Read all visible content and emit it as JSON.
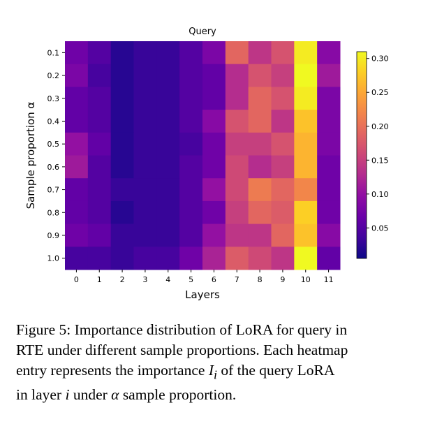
{
  "chart_data": {
    "type": "heatmap",
    "title": "Query",
    "xlabel": "Layers",
    "ylabel": "Sample proportion α",
    "x_ticks": [
      "0",
      "1",
      "2",
      "3",
      "4",
      "5",
      "6",
      "7",
      "8",
      "9",
      "10",
      "11"
    ],
    "y_ticks": [
      "0.1",
      "0.2",
      "0.3",
      "0.4",
      "0.5",
      "0.6",
      "0.7",
      "0.8",
      "0.9",
      "1.0"
    ],
    "colormap": "plasma",
    "value_range": [
      0.005,
      0.31
    ],
    "colorbar_ticks": [
      "0.05",
      "0.10",
      "0.15",
      "0.20",
      "0.25",
      "0.30"
    ],
    "colorbar_tick_values": [
      0.05,
      0.1,
      0.15,
      0.2,
      0.25,
      0.3
    ],
    "values": [
      [
        0.07,
        0.05,
        0.02,
        0.03,
        0.03,
        0.05,
        0.08,
        0.19,
        0.14,
        0.17,
        0.3,
        0.09
      ],
      [
        0.08,
        0.04,
        0.02,
        0.03,
        0.03,
        0.05,
        0.06,
        0.13,
        0.17,
        0.15,
        0.31,
        0.11
      ],
      [
        0.06,
        0.05,
        0.02,
        0.03,
        0.03,
        0.05,
        0.06,
        0.13,
        0.19,
        0.17,
        0.3,
        0.08
      ],
      [
        0.06,
        0.05,
        0.02,
        0.03,
        0.03,
        0.05,
        0.09,
        0.17,
        0.19,
        0.14,
        0.27,
        0.08
      ],
      [
        0.1,
        0.06,
        0.02,
        0.03,
        0.03,
        0.04,
        0.07,
        0.15,
        0.15,
        0.17,
        0.26,
        0.08
      ],
      [
        0.11,
        0.05,
        0.02,
        0.03,
        0.03,
        0.05,
        0.07,
        0.16,
        0.13,
        0.15,
        0.26,
        0.07
      ],
      [
        0.06,
        0.05,
        0.03,
        0.03,
        0.03,
        0.05,
        0.1,
        0.16,
        0.21,
        0.19,
        0.22,
        0.07
      ],
      [
        0.06,
        0.05,
        0.02,
        0.03,
        0.03,
        0.05,
        0.07,
        0.15,
        0.19,
        0.18,
        0.28,
        0.07
      ],
      [
        0.07,
        0.06,
        0.03,
        0.03,
        0.03,
        0.05,
        0.1,
        0.14,
        0.14,
        0.19,
        0.27,
        0.09
      ],
      [
        0.04,
        0.04,
        0.03,
        0.04,
        0.04,
        0.07,
        0.12,
        0.18,
        0.16,
        0.14,
        0.31,
        0.06
      ]
    ]
  },
  "caption": {
    "line1": "Figure 5: Importance distribution of LoRA for query in",
    "line2": "RTE under different sample proportions. Each heatmap",
    "line3_pre": "entry represents the importance ",
    "line3_var": "I",
    "line3_sub": "i",
    "line3_post": " of the query LoRA",
    "line4_pre": "in layer ",
    "line4_var": "i",
    "line4_mid": " under ",
    "line4_greek": "α",
    "line4_post": " sample proportion."
  }
}
